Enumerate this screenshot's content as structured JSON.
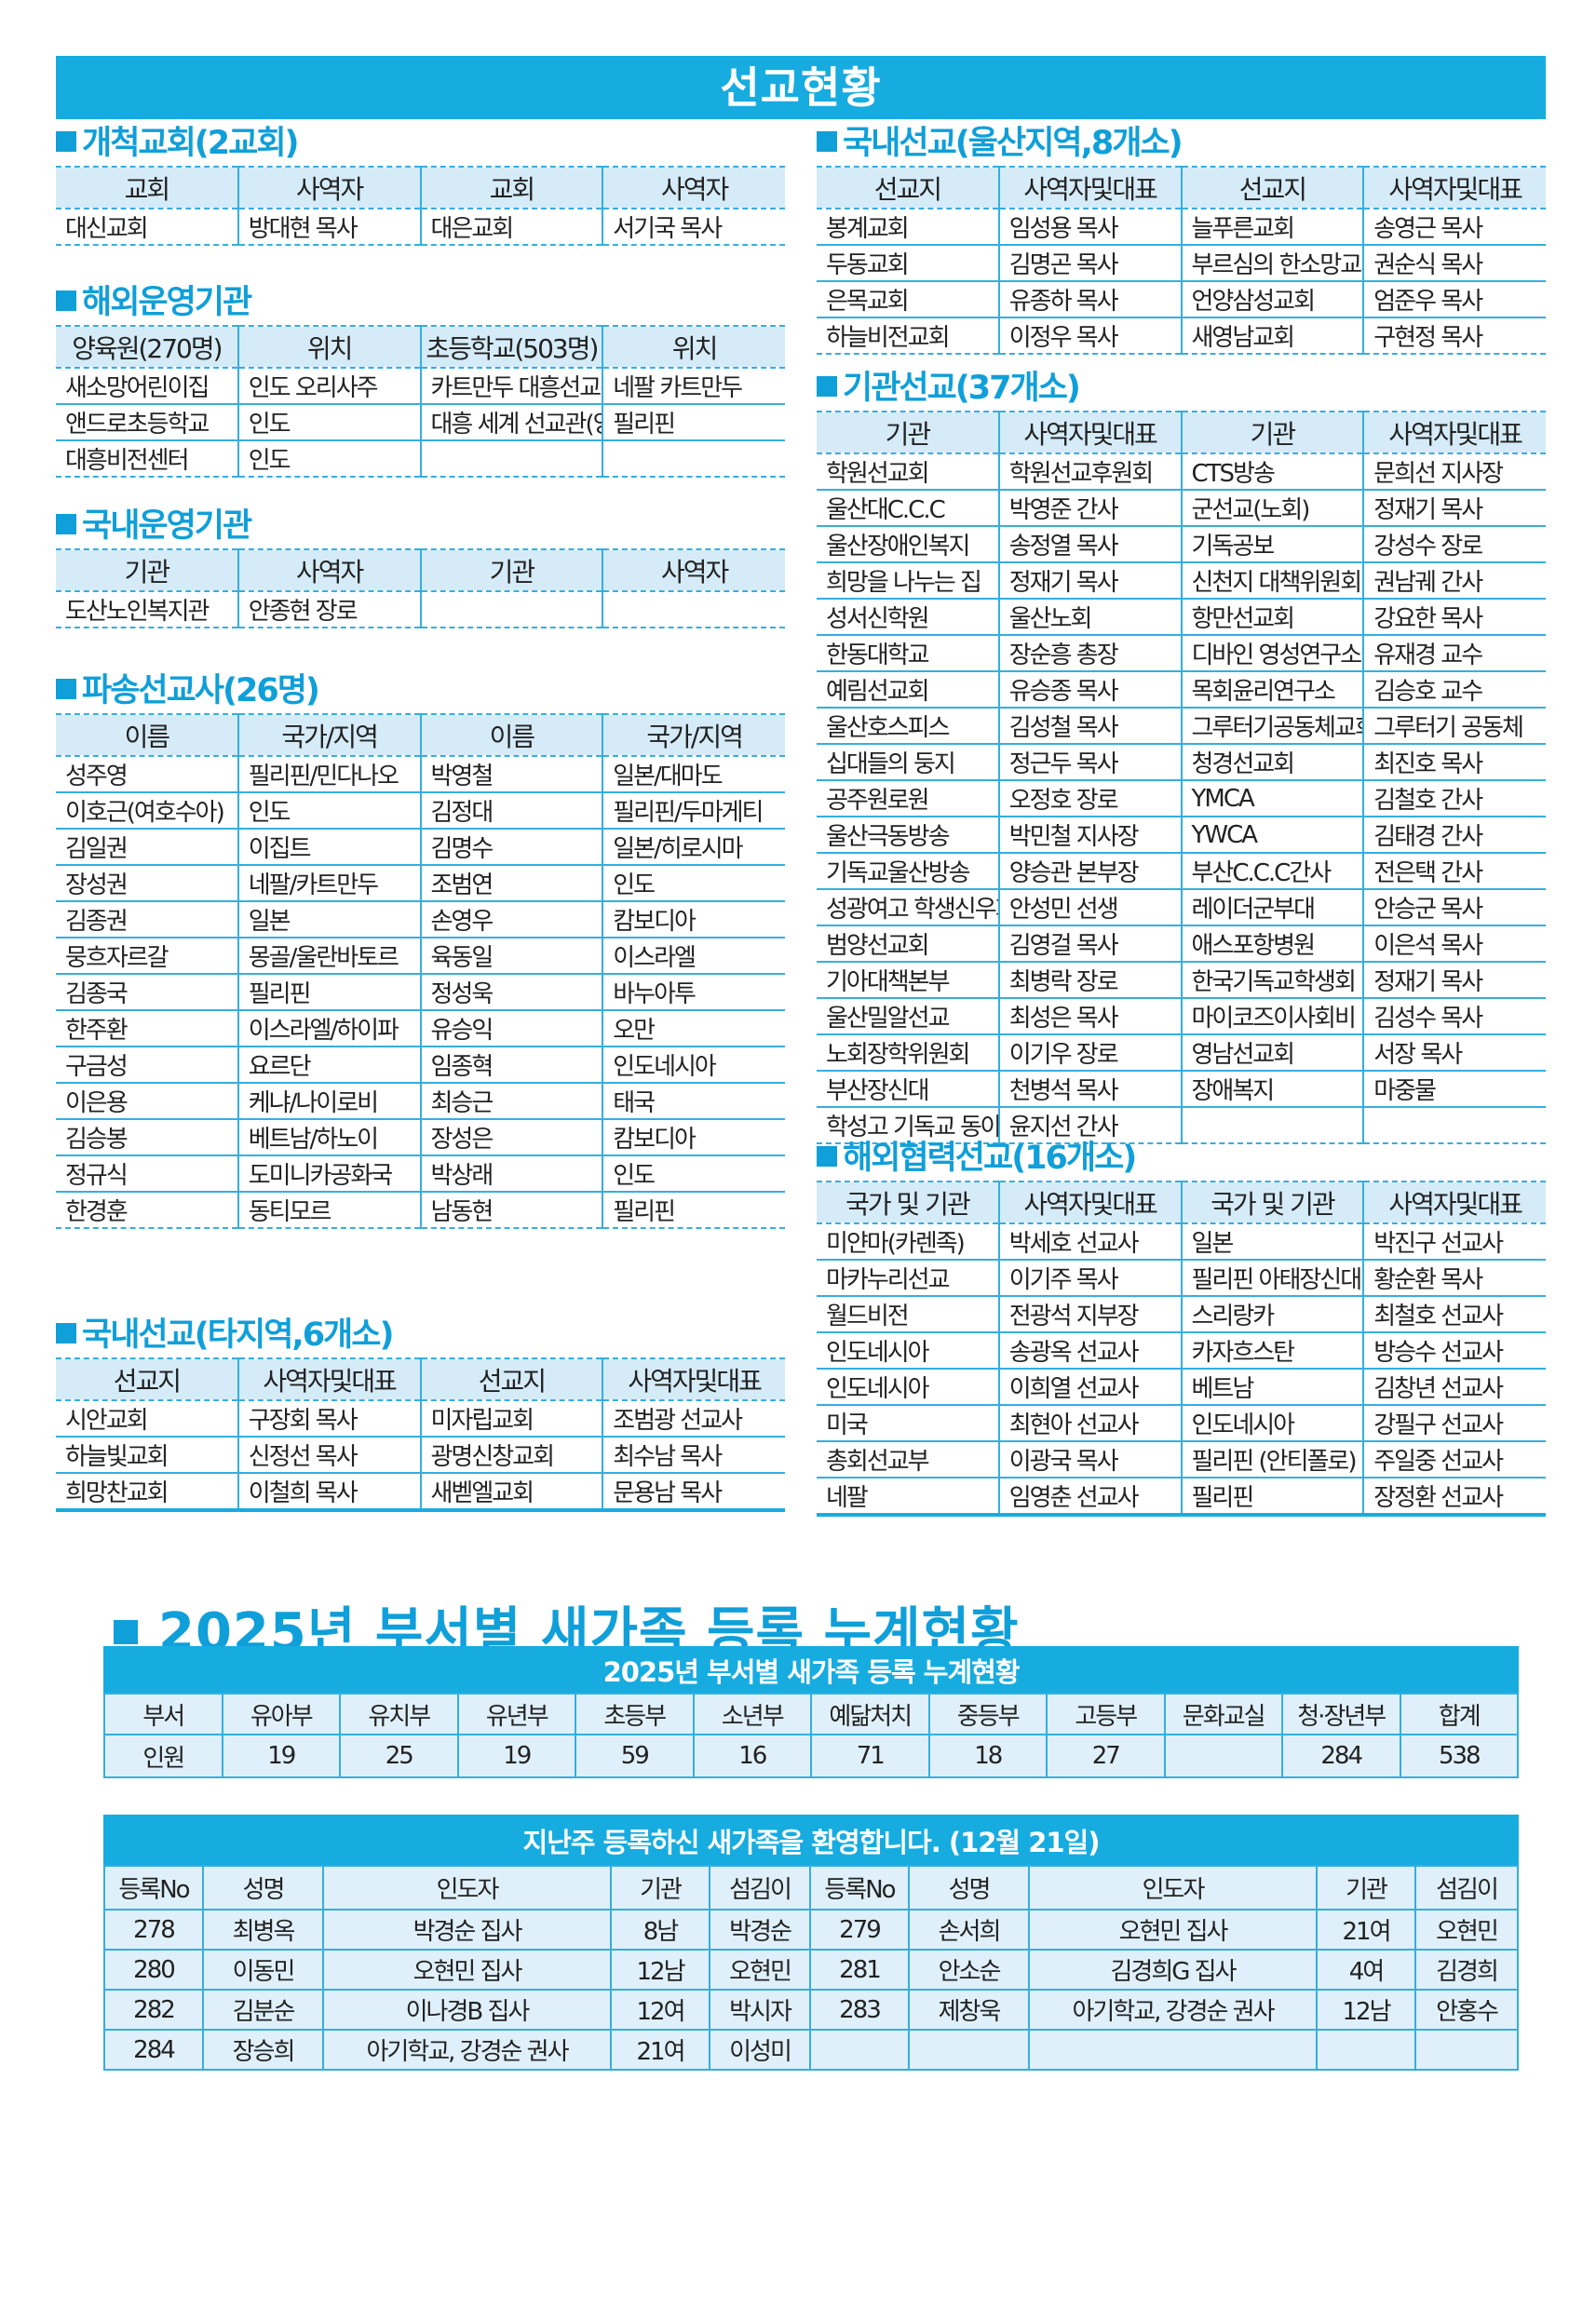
{
  "banner": "선교현황",
  "colors": {
    "accent": "#17ace0",
    "header_bg": "#d5ebf8",
    "cell_bg": "#dff0fa"
  },
  "sections": {
    "pioneer": {
      "title": "개척교회(2교회)",
      "headers": [
        "교회",
        "사역자",
        "교회",
        "사역자"
      ],
      "rows": [
        [
          "대신교회",
          "방대현 목사",
          "대은교회",
          "서기국 목사"
        ]
      ]
    },
    "overseas_ops": {
      "title": "해외운영기관",
      "headers": [
        "양육원(270명)",
        "위치",
        "초등학교(503명)",
        "위치"
      ],
      "rows": [
        [
          "새소망어린이집",
          "인도 오리사주",
          "카트만두 대흥선교센터",
          "네팔 카트만두"
        ],
        [
          "앤드로초등학교",
          "인도",
          "대흥 세계 선교관(앙헬레스)",
          "필리핀"
        ],
        [
          "대흥비전센터",
          "인도",
          "",
          ""
        ]
      ]
    },
    "domestic_ops": {
      "title": "국내운영기관",
      "headers": [
        "기관",
        "사역자",
        "기관",
        "사역자"
      ],
      "rows": [
        [
          "도산노인복지관",
          "안종현 장로",
          "",
          ""
        ]
      ]
    },
    "missionaries": {
      "title": "파송선교사(26명)",
      "headers": [
        "이름",
        "국가/지역",
        "이름",
        "국가/지역"
      ],
      "rows": [
        [
          "성주영",
          "필리핀/민다나오",
          "박영철",
          "일본/대마도"
        ],
        [
          "이호근(여호수아)",
          "인도",
          "김정대",
          "필리핀/두마게티"
        ],
        [
          "김일권",
          "이집트",
          "김명수",
          "일본/히로시마"
        ],
        [
          "장성권",
          "네팔/카트만두",
          "조범연",
          "인도"
        ],
        [
          "김종권",
          "일본",
          "손영우",
          "캄보디아"
        ],
        [
          "뭉흐자르갈",
          "몽골/울란바토르",
          "육동일",
          "이스라엘"
        ],
        [
          "김종국",
          "필리핀",
          "정성욱",
          "바누아투"
        ],
        [
          "한주환",
          "이스라엘/하이파",
          "유승익",
          "오만"
        ],
        [
          "구금성",
          "요르단",
          "임종혁",
          "인도네시아"
        ],
        [
          "이은용",
          "케냐/나이로비",
          "최승근",
          "태국"
        ],
        [
          "김승봉",
          "베트남/하노이",
          "장성은",
          "캄보디아"
        ],
        [
          "정규식",
          "도미니카공화국",
          "박상래",
          "인도"
        ],
        [
          "한경훈",
          "동티모르",
          "남동현",
          "필리핀"
        ]
      ]
    },
    "domestic_other": {
      "title": "국내선교(타지역,6개소)",
      "headers": [
        "선교지",
        "사역자및대표",
        "선교지",
        "사역자및대표"
      ],
      "rows": [
        [
          "시안교회",
          "구장회 목사",
          "미자립교회",
          "조범광 선교사"
        ],
        [
          "하늘빛교회",
          "신정선 목사",
          "광명신창교회",
          "최수남 목사"
        ],
        [
          "희망찬교회",
          "이철희 목사",
          "새벧엘교회",
          "문용남 목사"
        ]
      ]
    },
    "domestic_ulsan": {
      "title": "국내선교(울산지역,8개소)",
      "headers": [
        "선교지",
        "사역자및대표",
        "선교지",
        "사역자및대표"
      ],
      "rows": [
        [
          "봉계교회",
          "임성용 목사",
          "늘푸른교회",
          "송영근 목사"
        ],
        [
          "두동교회",
          "김명곤 목사",
          "부르심의 한소망교회",
          "권순식 목사"
        ],
        [
          "은목교회",
          "유종하 목사",
          "언양삼성교회",
          "엄준우 목사"
        ],
        [
          "하늘비전교회",
          "이정우 목사",
          "새영남교회",
          "구현정 목사"
        ]
      ]
    },
    "institutions": {
      "title": "기관선교(37개소)",
      "headers": [
        "기관",
        "사역자및대표",
        "기관",
        "사역자및대표"
      ],
      "rows": [
        [
          "학원선교회",
          "학원선교후원회",
          "CTS방송",
          "문희선 지사장"
        ],
        [
          "울산대C.C.C",
          "박영준 간사",
          "군선교(노회)",
          "정재기 목사"
        ],
        [
          "울산장애인복지",
          "송정열 목사",
          "기독공보",
          "강성수 장로"
        ],
        [
          "희망을 나누는 집",
          "정재기 목사",
          "신천지 대책위원회",
          "권남궤 간사"
        ],
        [
          "성서신학원",
          "울산노회",
          "항만선교회",
          "강요한 목사"
        ],
        [
          "한동대학교",
          "장순흥 총장",
          "디바인 영성연구소",
          "유재경 교수"
        ],
        [
          "예림선교회",
          "유승종 목사",
          "목회윤리연구소",
          "김승호 교수"
        ],
        [
          "울산호스피스",
          "김성철 목사",
          "그루터기공동체교회",
          "그루터기 공동체"
        ],
        [
          "십대들의 둥지",
          "정근두 목사",
          "청경선교회",
          "최진호 목사"
        ],
        [
          "공주원로원",
          "오정호 장로",
          "YMCA",
          "김철호 간사"
        ],
        [
          "울산극동방송",
          "박민철 지사장",
          "YWCA",
          "김태경 간사"
        ],
        [
          "기독교울산방송",
          "양승관 본부장",
          "부산C.C.C간사",
          "전은택 간사"
        ],
        [
          "성광여고 학생신우회",
          "안성민 선생",
          "레이더군부대",
          "안승군 목사"
        ],
        [
          "범양선교회",
          "김영걸 목사",
          "애스포항병원",
          "이은석 목사"
        ],
        [
          "기아대책본부",
          "최병락 장로",
          "한국기독교학생회",
          "정재기 목사"
        ],
        [
          "울산밀알선교",
          "최성은 목사",
          "마이코즈이사회비",
          "김성수 목사"
        ],
        [
          "노회장학위원회",
          "이기우 장로",
          "영남선교회",
          "서장 목사"
        ],
        [
          "부산장신대",
          "천병석 목사",
          "장애복지",
          "마중물"
        ],
        [
          "학성고 기독교 동아리",
          "윤지선 간사",
          "",
          ""
        ]
      ]
    },
    "overseas_coop": {
      "title": "해외협력선교(16개소)",
      "headers": [
        "국가 및 기관",
        "사역자및대표",
        "국가 및 기관",
        "사역자및대표"
      ],
      "rows": [
        [
          "미얀마(카렌족)",
          "박세호 선교사",
          "일본",
          "박진구 선교사"
        ],
        [
          "마카누리선교",
          "이기주 목사",
          "필리핀 아태장신대",
          "황순환 목사"
        ],
        [
          "월드비전",
          "전광석 지부장",
          "스리랑카",
          "최철호 선교사"
        ],
        [
          "인도네시아",
          "송광옥 선교사",
          "카자흐스탄",
          "방승수 선교사"
        ],
        [
          "인도네시아",
          "이희열 선교사",
          "베트남",
          "김창년 선교사"
        ],
        [
          "미국",
          "최현아 선교사",
          "인도네시아",
          "강필구 선교사"
        ],
        [
          "총회선교부",
          "이광국 목사",
          "필리핀 (안티폴로)",
          "주일중 선교사"
        ],
        [
          "네팔",
          "임영춘 선교사",
          "필리핀",
          "장정환 선교사"
        ]
      ]
    }
  },
  "registration": {
    "heading": "2025년 부서별 새가족 등록 누계현황",
    "caption": "2025년 부서별 새가족 등록 누계현황",
    "headers": [
      "부서",
      "유아부",
      "유치부",
      "유년부",
      "초등부",
      "소년부",
      "예닮처치",
      "중등부",
      "고등부",
      "문화교실",
      "청·장년부",
      "합계"
    ],
    "values": [
      "인원",
      "19",
      "25",
      "19",
      "59",
      "16",
      "71",
      "18",
      "27",
      "",
      "284",
      "538"
    ]
  },
  "welcome": {
    "caption": "지난주 등록하신 새가족을 환영합니다. (12월 21일)",
    "headers": [
      "등록No",
      "성명",
      "인도자",
      "기관",
      "섬김이",
      "등록No",
      "성명",
      "인도자",
      "기관",
      "섬김이"
    ],
    "rows": [
      [
        "278",
        "최병옥",
        "박경순 집사",
        "8남",
        "박경순",
        "279",
        "손서희",
        "오현민 집사",
        "21여",
        "오현민"
      ],
      [
        "280",
        "이동민",
        "오현민 집사",
        "12남",
        "오현민",
        "281",
        "안소순",
        "김경희G 집사",
        "4여",
        "김경희"
      ],
      [
        "282",
        "김분순",
        "이나경B 집사",
        "12여",
        "박시자",
        "283",
        "제창욱",
        "아기학교, 강경순 권사",
        "12남",
        "안홍수"
      ],
      [
        "284",
        "장승희",
        "아기학교, 강경순 권사",
        "21여",
        "이성미",
        "",
        "",
        "",
        "",
        ""
      ]
    ]
  }
}
